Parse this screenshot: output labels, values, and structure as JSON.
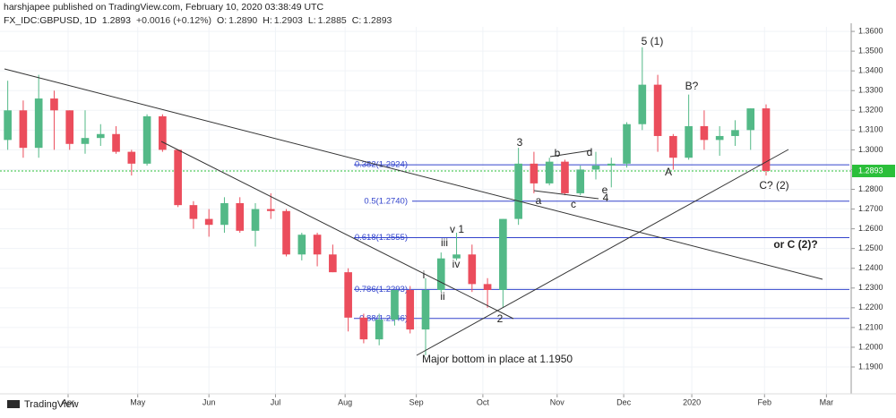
{
  "header": {
    "publisher": "harshjapee published on TradingView.com, February 10, 2020 03:38:49 UTC",
    "symbol": "FX_IDC:GBPUSD, 1D",
    "price": "1.2893",
    "change": "+0.0016 (+0.12%)",
    "ohlc": [
      {
        "key": "O:",
        "value": "1.2890"
      },
      {
        "key": "H:",
        "value": "1.2903"
      },
      {
        "key": "L:",
        "value": "1.2885"
      },
      {
        "key": "C:",
        "value": "1.2893"
      }
    ]
  },
  "footer": {
    "brand": "TradingView"
  },
  "chart_data": {
    "type": "candlestick",
    "categories": [
      null,
      null,
      null,
      null,
      null,
      null,
      null,
      null,
      null,
      null,
      null,
      null,
      null,
      null,
      null,
      null,
      null,
      null,
      null,
      null,
      null,
      null,
      null,
      null,
      null,
      null,
      null,
      null,
      null,
      null,
      null,
      null,
      null,
      null,
      null,
      null,
      null,
      null,
      null,
      null,
      null,
      null,
      null,
      null,
      null,
      null,
      null,
      null,
      null,
      null
    ],
    "open": [
      1.305,
      1.32,
      1.301,
      1.326,
      1.32,
      1.303,
      1.306,
      1.308,
      1.299,
      1.293,
      1.317,
      1.3,
      1.272,
      1.265,
      1.262,
      1.273,
      1.259,
      1.27,
      1.269,
      1.247,
      1.257,
      1.247,
      1.238,
      1.215,
      1.204,
      1.214,
      1.229,
      1.209,
      1.229,
      1.245,
      1.247,
      1.232,
      1.229,
      1.265,
      1.293,
      1.283,
      1.294,
      1.278,
      1.29,
      1.292,
      1.293,
      1.313,
      1.333,
      1.307,
      1.296,
      1.312,
      1.305,
      1.307,
      1.31,
      1.321
    ],
    "high": [
      1.335,
      1.325,
      1.338,
      1.33,
      1.32,
      1.32,
      1.313,
      1.312,
      1.3,
      1.318,
      1.318,
      1.3,
      1.274,
      1.27,
      1.276,
      1.276,
      1.273,
      1.278,
      1.27,
      1.258,
      1.258,
      1.252,
      1.24,
      1.217,
      1.217,
      1.229,
      1.231,
      1.235,
      1.248,
      1.258,
      1.252,
      1.235,
      1.265,
      1.301,
      1.299,
      1.296,
      1.295,
      1.292,
      1.299,
      1.296,
      1.314,
      1.352,
      1.338,
      1.308,
      1.328,
      1.32,
      1.312,
      1.315,
      1.321,
      1.323
    ],
    "low": [
      1.3,
      1.296,
      1.296,
      1.3,
      1.3,
      1.298,
      1.302,
      1.298,
      1.287,
      1.292,
      1.299,
      1.271,
      1.26,
      1.256,
      1.258,
      1.258,
      1.251,
      1.265,
      1.246,
      1.244,
      1.241,
      1.238,
      1.208,
      1.202,
      1.201,
      1.211,
      1.207,
      1.196,
      1.228,
      1.244,
      1.228,
      1.22,
      1.22,
      1.262,
      1.278,
      1.282,
      1.277,
      1.277,
      1.285,
      1.281,
      1.291,
      1.31,
      1.299,
      1.29,
      1.295,
      1.3,
      1.297,
      1.302,
      1.3,
      1.287
    ],
    "close": [
      1.32,
      1.301,
      1.326,
      1.32,
      1.303,
      1.306,
      1.308,
      1.299,
      1.293,
      1.317,
      1.3,
      1.272,
      1.265,
      1.262,
      1.273,
      1.259,
      1.27,
      1.269,
      1.247,
      1.257,
      1.247,
      1.238,
      1.215,
      1.204,
      1.214,
      1.229,
      1.209,
      1.229,
      1.245,
      1.247,
      1.232,
      1.229,
      1.265,
      1.293,
      1.283,
      1.294,
      1.278,
      1.29,
      1.292,
      1.293,
      1.313,
      1.333,
      1.307,
      1.296,
      1.312,
      1.305,
      1.307,
      1.31,
      1.321,
      1.2893
    ],
    "up_color": "#53b987",
    "down_color": "#eb4d5c",
    "xlim": [
      -0.5,
      54.5
    ],
    "xticks": [
      {
        "value": 3.9,
        "label": "Apr"
      },
      {
        "value": 8.4,
        "label": "May"
      },
      {
        "value": 13,
        "label": "Jun"
      },
      {
        "value": 17.3,
        "label": "Jul"
      },
      {
        "value": 21.8,
        "label": "Aug"
      },
      {
        "value": 26.4,
        "label": "Sep"
      },
      {
        "value": 30.7,
        "label": "Oct"
      },
      {
        "value": 35.5,
        "label": "Nov"
      },
      {
        "value": 39.8,
        "label": "Dec"
      },
      {
        "value": 44.2,
        "label": "2020"
      },
      {
        "value": 48.9,
        "label": "Feb"
      },
      {
        "value": 52.9,
        "label": "Mar"
      }
    ],
    "ylim": [
      1.1832,
      1.3623
    ],
    "yticks": [
      {
        "value": 1.19,
        "label": "1.1900"
      },
      {
        "value": 1.2,
        "label": "1.2000"
      },
      {
        "value": 1.21,
        "label": "1.2100"
      },
      {
        "value": 1.22,
        "label": "1.2200"
      },
      {
        "value": 1.23,
        "label": "1.2300"
      },
      {
        "value": 1.24,
        "label": "1.2400"
      },
      {
        "value": 1.25,
        "label": "1.2500"
      },
      {
        "value": 1.26,
        "label": "1.2600"
      },
      {
        "value": 1.27,
        "label": "1.2700"
      },
      {
        "value": 1.28,
        "label": "1.2800"
      },
      {
        "value": 1.29,
        "label": "1.2900"
      },
      {
        "value": 1.3,
        "label": "1.3000"
      },
      {
        "value": 1.31,
        "label": "1.3100"
      },
      {
        "value": 1.32,
        "label": "1.3200"
      },
      {
        "value": 1.33,
        "label": "1.3300"
      },
      {
        "value": 1.34,
        "label": "1.3400"
      },
      {
        "value": 1.35,
        "label": "1.3500"
      },
      {
        "value": 1.36,
        "label": "1.3600"
      }
    ],
    "grid": true,
    "last_price": {
      "value": 1.2893,
      "label": "1.2893",
      "color": "#2bbf3a"
    },
    "fib_levels": [
      {
        "value": 1.2924,
        "label": "0.382(1.2924)"
      },
      {
        "value": 1.274,
        "label": "0.5(1.2740)"
      },
      {
        "value": 1.2555,
        "label": "0.618(1.2555)"
      },
      {
        "value": 1.2293,
        "label": "0.786(1.2293)"
      },
      {
        "value": 1.2146,
        "label": "0.88(1.2146)"
      }
    ],
    "fib_color": "#3344cc",
    "annotations": [
      "5 (1)",
      "B?",
      "3",
      "b",
      "d",
      "A",
      "C? (2)",
      "a",
      "c",
      "e",
      "4",
      "v 1",
      "iii",
      "iv",
      "i",
      "ii",
      "2",
      "or C (2)?",
      "Major bottom in place at 1.1950"
    ]
  }
}
